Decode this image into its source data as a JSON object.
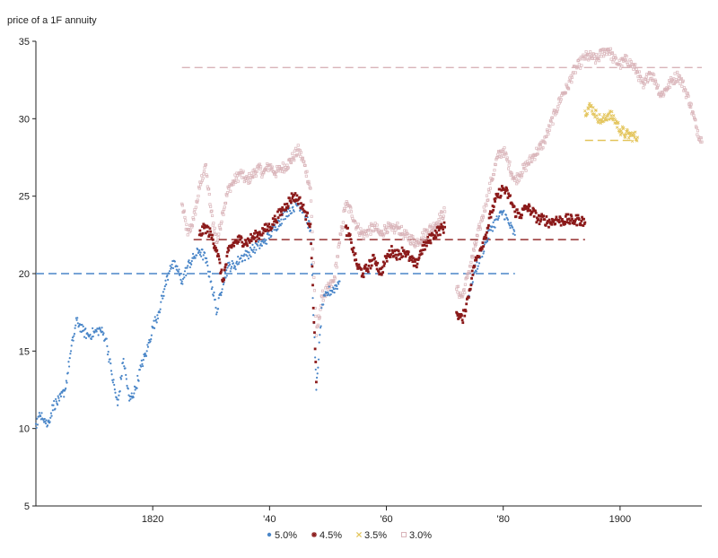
{
  "chart_data": {
    "type": "scatter",
    "title": "",
    "ylabel": "price of a 1F annuity",
    "xlabel": "",
    "xlim": [
      1800,
      1914
    ],
    "ylim": [
      5,
      35
    ],
    "y_ticks": [
      5,
      10,
      15,
      20,
      25,
      30,
      35
    ],
    "x_ticks": [
      {
        "value": 1820,
        "label": "1820"
      },
      {
        "value": 1840,
        "label": "'40"
      },
      {
        "value": 1860,
        "label": "'60"
      },
      {
        "value": 1880,
        "label": "'80"
      },
      {
        "value": 1900,
        "label": "1900"
      }
    ],
    "legend": {
      "position": "bottom-center"
    },
    "grid": false,
    "series": [
      {
        "name": "5.0%",
        "color": "#4a86c8",
        "marker": "dot",
        "parity_level": 20,
        "parity_x": [
          1800,
          1882
        ],
        "points": [
          [
            1800,
            10.3
          ],
          [
            1801,
            11.0
          ],
          [
            1802,
            10.2
          ],
          [
            1803,
            11.5
          ],
          [
            1804,
            11.8
          ],
          [
            1805,
            12.5
          ],
          [
            1806,
            15.0
          ],
          [
            1807,
            17.0
          ],
          [
            1808,
            16.3
          ],
          [
            1809,
            16.0
          ],
          [
            1810,
            16.2
          ],
          [
            1811,
            16.4
          ],
          [
            1812,
            15.8
          ],
          [
            1813,
            13.5
          ],
          [
            1814,
            11.5
          ],
          [
            1815,
            14.5
          ],
          [
            1816,
            11.8
          ],
          [
            1817,
            12.5
          ],
          [
            1818,
            14.0
          ],
          [
            1819,
            15.0
          ],
          [
            1820,
            16.5
          ],
          [
            1821,
            17.5
          ],
          [
            1822,
            19.0
          ],
          [
            1823,
            20.5
          ],
          [
            1824,
            20.5
          ],
          [
            1825,
            19.5
          ],
          [
            1826,
            20.5
          ],
          [
            1827,
            21.0
          ],
          [
            1828,
            21.5
          ],
          [
            1829,
            21.0
          ],
          [
            1830,
            19.5
          ],
          [
            1831,
            17.5
          ],
          [
            1832,
            19.5
          ],
          [
            1833,
            20.5
          ],
          [
            1834,
            20.5
          ],
          [
            1835,
            21.0
          ],
          [
            1836,
            21.2
          ],
          [
            1837,
            21.5
          ],
          [
            1838,
            21.8
          ],
          [
            1839,
            22.0
          ],
          [
            1840,
            22.5
          ],
          [
            1841,
            23.0
          ],
          [
            1842,
            23.5
          ],
          [
            1843,
            24.0
          ],
          [
            1844,
            24.3
          ],
          [
            1845,
            24.5
          ],
          [
            1846,
            24.0
          ],
          [
            1847,
            22.8
          ],
          [
            1848,
            12.5
          ],
          [
            1849,
            18.0
          ],
          [
            1850,
            18.8
          ],
          [
            1851,
            19.0
          ],
          [
            1852,
            19.5
          ],
          [
            1874,
            18.5
          ],
          [
            1875,
            20.0
          ],
          [
            1876,
            21.0
          ],
          [
            1877,
            22.0
          ],
          [
            1878,
            23.0
          ],
          [
            1879,
            23.5
          ],
          [
            1880,
            24.0
          ],
          [
            1881,
            23.2
          ],
          [
            1882,
            22.5
          ]
        ]
      },
      {
        "name": "4.5%",
        "color": "#8b1a1a",
        "marker": "star",
        "parity_level": 22.2,
        "parity_x": [
          1827,
          1894
        ],
        "points": [
          [
            1828,
            22.5
          ],
          [
            1829,
            23.0
          ],
          [
            1830,
            22.5
          ],
          [
            1831,
            21.5
          ],
          [
            1832,
            19.5
          ],
          [
            1833,
            21.5
          ],
          [
            1834,
            22.0
          ],
          [
            1835,
            22.2
          ],
          [
            1836,
            22.0
          ],
          [
            1837,
            22.3
          ],
          [
            1838,
            22.5
          ],
          [
            1839,
            22.8
          ],
          [
            1840,
            23.0
          ],
          [
            1841,
            23.5
          ],
          [
            1842,
            24.0
          ],
          [
            1843,
            24.5
          ],
          [
            1844,
            25.0
          ],
          [
            1845,
            24.8
          ],
          [
            1846,
            24.0
          ],
          [
            1847,
            23.2
          ],
          [
            1848,
            13.0
          ],
          [
            1853,
            23.0
          ],
          [
            1854,
            22.0
          ],
          [
            1855,
            20.5
          ],
          [
            1856,
            20.0
          ],
          [
            1857,
            20.5
          ],
          [
            1858,
            21.0
          ],
          [
            1859,
            20.0
          ],
          [
            1860,
            21.0
          ],
          [
            1861,
            21.5
          ],
          [
            1862,
            21.2
          ],
          [
            1863,
            21.5
          ],
          [
            1864,
            21.0
          ],
          [
            1865,
            20.5
          ],
          [
            1866,
            21.5
          ],
          [
            1867,
            22.0
          ],
          [
            1868,
            22.5
          ],
          [
            1869,
            22.8
          ],
          [
            1870,
            23.0
          ],
          [
            1872,
            17.5
          ],
          [
            1873,
            17.0
          ],
          [
            1874,
            18.5
          ],
          [
            1875,
            20.5
          ],
          [
            1876,
            21.5
          ],
          [
            1877,
            22.5
          ],
          [
            1878,
            24.0
          ],
          [
            1879,
            25.0
          ],
          [
            1880,
            25.5
          ],
          [
            1881,
            25.0
          ],
          [
            1882,
            24.0
          ],
          [
            1883,
            23.8
          ],
          [
            1884,
            24.3
          ],
          [
            1885,
            24.0
          ],
          [
            1886,
            23.5
          ],
          [
            1887,
            23.5
          ],
          [
            1888,
            23.3
          ],
          [
            1889,
            23.5
          ],
          [
            1890,
            23.4
          ],
          [
            1891,
            23.5
          ],
          [
            1892,
            23.4
          ],
          [
            1893,
            23.5
          ],
          [
            1894,
            23.3
          ]
        ]
      },
      {
        "name": "3.5%",
        "color": "#e3c45a",
        "marker": "cross",
        "parity_level": 28.6,
        "parity_x": [
          1894,
          1903
        ],
        "points": [
          [
            1894,
            30.5
          ],
          [
            1895,
            30.8
          ],
          [
            1896,
            30.2
          ],
          [
            1897,
            29.8
          ],
          [
            1898,
            30.3
          ],
          [
            1899,
            30.0
          ],
          [
            1900,
            29.3
          ],
          [
            1901,
            29.0
          ],
          [
            1902,
            28.9
          ],
          [
            1903,
            28.8
          ]
        ]
      },
      {
        "name": "3.0%",
        "color": "#d9b4b9",
        "marker": "square",
        "parity_level": 33.3,
        "parity_x": [
          1825,
          1914
        ],
        "points": [
          [
            1825,
            24.5
          ],
          [
            1826,
            22.5
          ],
          [
            1827,
            23.5
          ],
          [
            1828,
            25.5
          ],
          [
            1829,
            27.0
          ],
          [
            1830,
            24.0
          ],
          [
            1831,
            22.0
          ],
          [
            1832,
            24.0
          ],
          [
            1833,
            25.5
          ],
          [
            1834,
            26.0
          ],
          [
            1835,
            26.5
          ],
          [
            1836,
            26.0
          ],
          [
            1837,
            26.3
          ],
          [
            1838,
            26.8
          ],
          [
            1839,
            26.5
          ],
          [
            1840,
            27.0
          ],
          [
            1841,
            26.5
          ],
          [
            1842,
            26.8
          ],
          [
            1843,
            27.0
          ],
          [
            1844,
            27.5
          ],
          [
            1845,
            28.0
          ],
          [
            1846,
            27.0
          ],
          [
            1847,
            25.5
          ],
          [
            1848,
            16.0
          ],
          [
            1849,
            18.5
          ],
          [
            1850,
            19.0
          ],
          [
            1851,
            19.5
          ],
          [
            1852,
            22.0
          ],
          [
            1853,
            24.5
          ],
          [
            1854,
            24.0
          ],
          [
            1855,
            23.0
          ],
          [
            1856,
            22.5
          ],
          [
            1857,
            22.8
          ],
          [
            1858,
            23.0
          ],
          [
            1859,
            22.5
          ],
          [
            1860,
            23.0
          ],
          [
            1861,
            22.8
          ],
          [
            1862,
            23.0
          ],
          [
            1863,
            22.5
          ],
          [
            1864,
            22.3
          ],
          [
            1865,
            22.0
          ],
          [
            1866,
            22.3
          ],
          [
            1867,
            22.8
          ],
          [
            1868,
            23.0
          ],
          [
            1869,
            23.5
          ],
          [
            1870,
            24.0
          ],
          [
            1872,
            19.0
          ],
          [
            1873,
            18.5
          ],
          [
            1874,
            20.0
          ],
          [
            1875,
            21.5
          ],
          [
            1876,
            23.0
          ],
          [
            1877,
            24.5
          ],
          [
            1878,
            26.0
          ],
          [
            1879,
            27.5
          ],
          [
            1880,
            28.0
          ],
          [
            1881,
            27.0
          ],
          [
            1882,
            26.0
          ],
          [
            1883,
            26.5
          ],
          [
            1884,
            27.0
          ],
          [
            1885,
            27.5
          ],
          [
            1886,
            28.0
          ],
          [
            1887,
            28.5
          ],
          [
            1888,
            29.5
          ],
          [
            1889,
            30.5
          ],
          [
            1890,
            31.5
          ],
          [
            1891,
            32.0
          ],
          [
            1892,
            33.0
          ],
          [
            1893,
            33.5
          ],
          [
            1894,
            34.0
          ],
          [
            1895,
            34.0
          ],
          [
            1896,
            33.8
          ],
          [
            1897,
            34.3
          ],
          [
            1898,
            34.5
          ],
          [
            1899,
            33.8
          ],
          [
            1900,
            33.5
          ],
          [
            1901,
            33.8
          ],
          [
            1902,
            33.5
          ],
          [
            1903,
            33.0
          ],
          [
            1904,
            32.0
          ],
          [
            1905,
            33.0
          ],
          [
            1906,
            32.5
          ],
          [
            1907,
            31.5
          ],
          [
            1908,
            32.0
          ],
          [
            1909,
            32.5
          ],
          [
            1910,
            32.8
          ],
          [
            1911,
            32.0
          ],
          [
            1912,
            31.0
          ],
          [
            1913,
            29.5
          ],
          [
            1914,
            28.5
          ]
        ]
      }
    ]
  }
}
